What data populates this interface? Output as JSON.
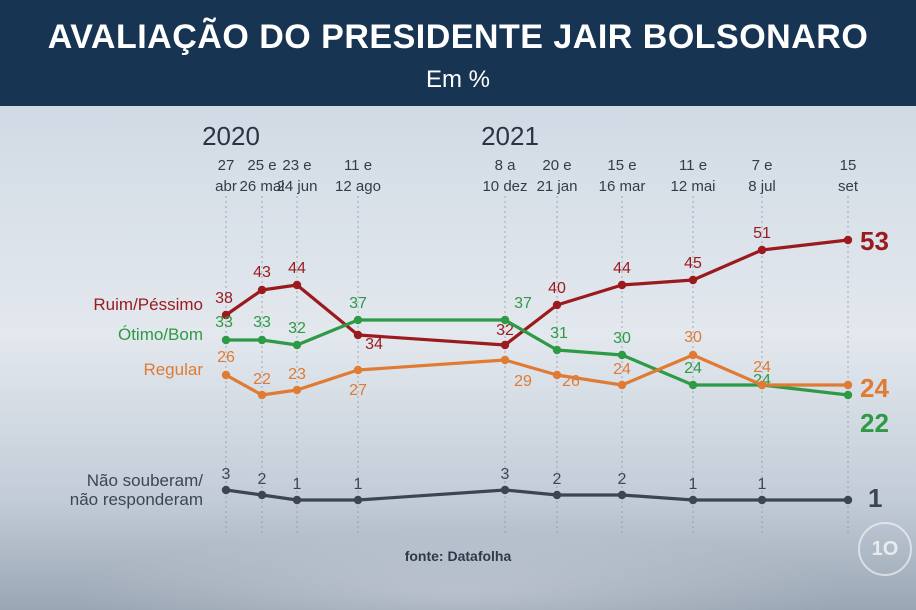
{
  "title": "AVALIAÇÃO DO PRESIDENTE JAIR BOLSONARO",
  "subtitle": "Em %",
  "source": "fonte: Datafolha",
  "logo_text": "1O",
  "chart_data": {
    "type": "line",
    "title": "AVALIAÇÃO DO PRESIDENTE JAIR BOLSONARO",
    "subtitle": "Em %",
    "years": [
      {
        "label": "2020",
        "at": 0
      },
      {
        "label": "2021",
        "at": 4
      }
    ],
    "categories": [
      [
        "27",
        "abr"
      ],
      [
        "25 e",
        "26 mai"
      ],
      [
        "23 e",
        "24 jun"
      ],
      [
        "11 e",
        "12 ago"
      ],
      [
        "8 a",
        "10 dez"
      ],
      [
        "20 e",
        "21 jan"
      ],
      [
        "15 e",
        "16 mar"
      ],
      [
        "11 e",
        "12 mai"
      ],
      [
        "7 e",
        "8 jul"
      ],
      [
        "15",
        "set"
      ]
    ],
    "series": [
      {
        "name": "Ruim/Péssimo",
        "color": "#9b1a1d",
        "values": [
          38,
          43,
          44,
          34,
          32,
          40,
          44,
          45,
          51,
          53
        ]
      },
      {
        "name": "Ótimo/Bom",
        "color": "#2e9a45",
        "values": [
          33,
          33,
          32,
          37,
          37,
          31,
          30,
          24,
          24,
          22
        ]
      },
      {
        "name": "Regular",
        "color": "#e07b33",
        "values": [
          26,
          22,
          23,
          27,
          29,
          26,
          24,
          30,
          24,
          24
        ]
      },
      {
        "name": "Não souberam/ não responderam",
        "color": "#3d4550",
        "values": [
          3,
          2,
          1,
          1,
          3,
          2,
          2,
          1,
          1,
          1
        ]
      }
    ],
    "source": "fonte: Datafolha"
  }
}
